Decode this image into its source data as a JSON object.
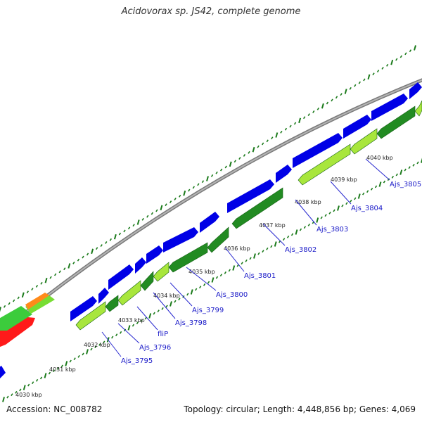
{
  "title": "Acidovorax sp. JS42, complete genome",
  "footer": {
    "accession": "Accession: NC_008782",
    "summary": "Topology: circular; Length: 4,448,856 bp; Genes: 4,069"
  },
  "axis_labels": [
    "4030 kbp",
    "4031 kbp",
    "4032 kbp",
    "4033 kbp",
    "4034 kbp",
    "4035 kbp",
    "4036 kbp",
    "4037 kbp",
    "4038 kbp",
    "4039 kbp",
    "4040 kbp"
  ],
  "gene_labels": [
    "Ajs_3795",
    "Ajs_3796",
    "fliP",
    "Ajs_3798",
    "Ajs_3799",
    "Ajs_3800",
    "Ajs_3801",
    "Ajs_3802",
    "Ajs_3803",
    "Ajs_3804",
    "Ajs_3805"
  ],
  "colors": {
    "forward_cds": "#0000e6",
    "reverse_cds": "#228b22",
    "reverse_cds_light": "#a8e63c",
    "other_red": "#ff1a1a",
    "other_orange": "#ff8a1a",
    "tick": "#1a7a1a"
  }
}
